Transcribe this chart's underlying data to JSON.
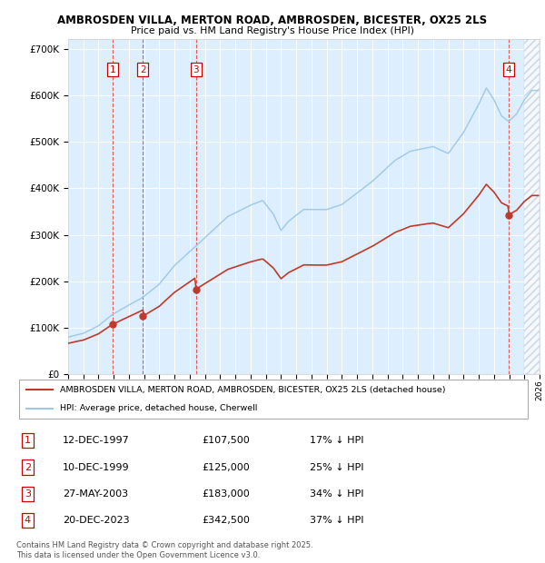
{
  "title1": "AMBROSDEN VILLA, MERTON ROAD, AMBROSDEN, BICESTER, OX25 2LS",
  "title2": "Price paid vs. HM Land Registry's House Price Index (HPI)",
  "ylim": [
    0,
    720000
  ],
  "yticks": [
    0,
    100000,
    200000,
    300000,
    400000,
    500000,
    600000,
    700000
  ],
  "ytick_labels": [
    "£0",
    "£100K",
    "£200K",
    "£300K",
    "£400K",
    "£500K",
    "£600K",
    "£700K"
  ],
  "x_start_year": 1995,
  "x_end_year": 2026,
  "hpi_color": "#9ec8e8",
  "price_color": "#c0392b",
  "vline_color": "#e74c3c",
  "purchase_dates": [
    1997.92,
    1999.92,
    2003.41,
    2023.97
  ],
  "purchase_prices": [
    107500,
    125000,
    183000,
    342500
  ],
  "purchase_labels": [
    "1",
    "2",
    "3",
    "4"
  ],
  "legend_label_price": "AMBROSDEN VILLA, MERTON ROAD, AMBROSDEN, BICESTER, OX25 2LS (detached house)",
  "legend_label_hpi": "HPI: Average price, detached house, Cherwell",
  "table_rows": [
    [
      "1",
      "12-DEC-1997",
      "£107,500",
      "17% ↓ HPI"
    ],
    [
      "2",
      "10-DEC-1999",
      "£125,000",
      "25% ↓ HPI"
    ],
    [
      "3",
      "27-MAY-2003",
      "£183,000",
      "34% ↓ HPI"
    ],
    [
      "4",
      "20-DEC-2023",
      "£342,500",
      "37% ↓ HPI"
    ]
  ],
  "footnote": "Contains HM Land Registry data © Crown copyright and database right 2025.\nThis data is licensed under the Open Government Licence v3.0.",
  "bg_color": "#ddeeff",
  "hpi_anchors_years": [
    1995.0,
    1996.0,
    1997.0,
    1997.92,
    1999.0,
    1999.92,
    2001.0,
    2002.0,
    2003.41,
    2004.5,
    2005.5,
    2007.0,
    2007.8,
    2008.5,
    2009.0,
    2009.5,
    2010.5,
    2012.0,
    2013.0,
    2014.0,
    2015.0,
    2016.5,
    2017.5,
    2019.0,
    2020.0,
    2021.0,
    2022.0,
    2022.5,
    2023.0,
    2023.5,
    2023.97,
    2024.5,
    2025.0,
    2025.5
  ],
  "hpi_anchors_vals": [
    80000,
    88000,
    105000,
    129518,
    150000,
    166667,
    195000,
    235000,
    277273,
    310000,
    340000,
    365000,
    375000,
    345000,
    310000,
    330000,
    355000,
    355000,
    365000,
    390000,
    415000,
    460000,
    480000,
    490000,
    475000,
    520000,
    580000,
    615000,
    590000,
    555000,
    543651,
    560000,
    590000,
    610000
  ]
}
